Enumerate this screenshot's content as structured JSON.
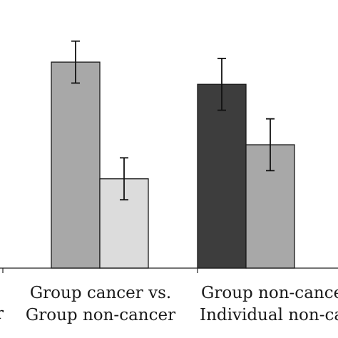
{
  "chart_data": {
    "type": "bar",
    "title": "",
    "xlabel": "",
    "ylabel": "",
    "ylim": [
      0,
      100
    ],
    "grid": false,
    "colors": {
      "dark": "#3d3d3d",
      "medium": "#a8a8a8",
      "light": "#dcdcdc"
    },
    "categories": [
      {
        "lines": [
          "",
          ""
        ],
        "partial": true
      },
      {
        "lines": [
          "Group cancer vs.",
          "Group non-cancer"
        ],
        "partial": false
      },
      {
        "lines": [
          "Group non-cancer",
          "Individual non-cancer"
        ],
        "partial": true
      }
    ],
    "bars": [
      {
        "category": 1,
        "slot": 1,
        "value": 83.5,
        "err": 8.5,
        "color": "medium"
      },
      {
        "category": 1,
        "slot": 2,
        "value": 36.2,
        "err": 8.5,
        "color": "light"
      },
      {
        "category": 2,
        "slot": 0,
        "value": 74.5,
        "err": 10.5,
        "color": "dark"
      },
      {
        "category": 2,
        "slot": 1,
        "value": 50.0,
        "err": 10.5,
        "color": "medium"
      }
    ]
  }
}
